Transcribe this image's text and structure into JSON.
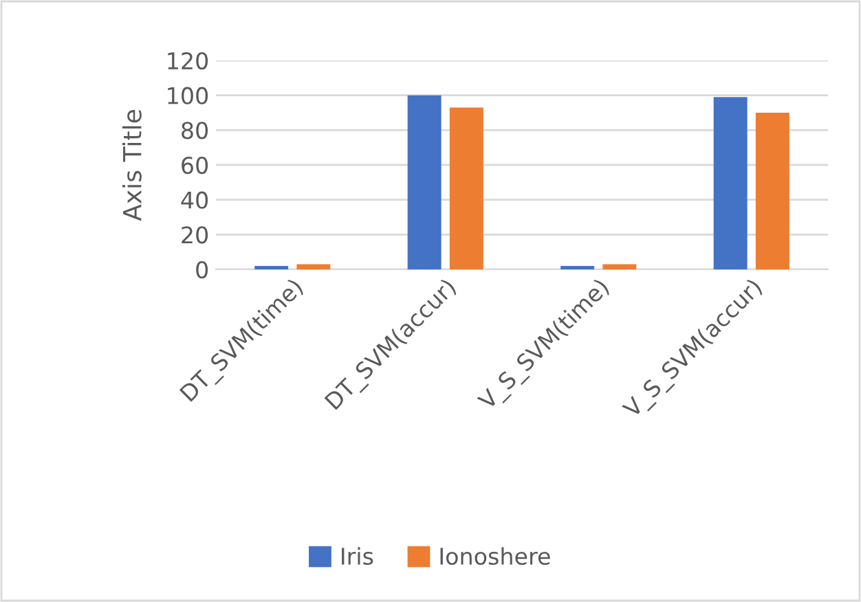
{
  "chart_data": {
    "type": "bar",
    "ylabel": "Axis Title",
    "categories": [
      "DT_SVM(time)",
      "DT_SVM(accur)",
      "V_S_SVM(time)",
      "V_S_SVM(accur)"
    ],
    "series": [
      {
        "name": "Iris",
        "color": "#4472c4",
        "values": [
          2,
          100,
          2,
          99
        ]
      },
      {
        "name": "Ionoshere",
        "color": "#ed7d31",
        "values": [
          3,
          93,
          3,
          90
        ]
      }
    ],
    "ylim": [
      0,
      120
    ],
    "yticks": [
      0,
      20,
      40,
      60,
      80,
      100,
      120
    ],
    "grid": "y",
    "legend": "bottom"
  }
}
